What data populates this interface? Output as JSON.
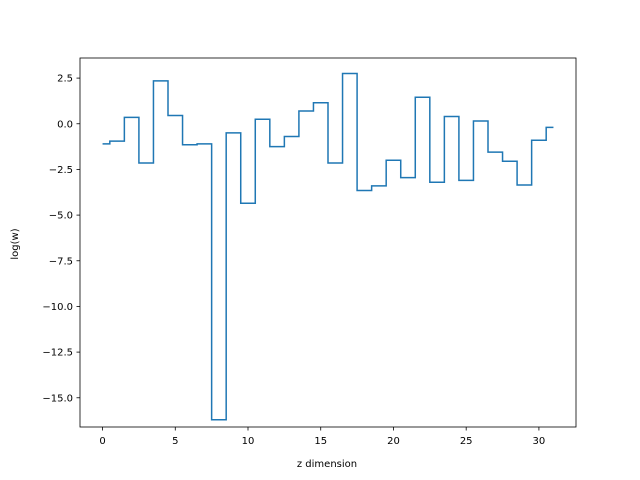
{
  "chart_data": {
    "type": "line",
    "drawstyle": "steps-mid",
    "xlabel": "z dimension",
    "ylabel": "log(w)",
    "xlim": [
      -1.55,
      32.55
    ],
    "ylim": [
      -16.6,
      3.6
    ],
    "xticks": [
      0,
      5,
      10,
      15,
      20,
      25,
      30
    ],
    "yticks": [
      2.5,
      0.0,
      -2.5,
      -5.0,
      -7.5,
      -10.0,
      -12.5,
      -15.0
    ],
    "ytick_labels": [
      "2.5",
      "0.0",
      "−2.5",
      "−5.0",
      "−7.5",
      "−10.0",
      "−12.5",
      "−15.0"
    ],
    "grid": false,
    "color": "#1f77b4",
    "series": [
      {
        "x": [
          0,
          1,
          2,
          3,
          4,
          5,
          6,
          7,
          8,
          9,
          10,
          11,
          12,
          13,
          14,
          15,
          16,
          17,
          18,
          19,
          20,
          21,
          22,
          23,
          24,
          25,
          26,
          27,
          28,
          29,
          30,
          31
        ],
        "values": [
          -1.1,
          -0.95,
          0.35,
          -2.15,
          2.35,
          0.45,
          -1.15,
          -1.1,
          -16.2,
          -0.5,
          -4.35,
          0.25,
          -1.25,
          -0.7,
          0.7,
          1.15,
          -2.15,
          2.75,
          -3.65,
          -3.4,
          -2.0,
          -2.95,
          1.45,
          -3.2,
          0.4,
          -3.1,
          0.15,
          -1.55,
          -2.05,
          -3.35,
          -0.9,
          -0.2
        ]
      }
    ]
  }
}
